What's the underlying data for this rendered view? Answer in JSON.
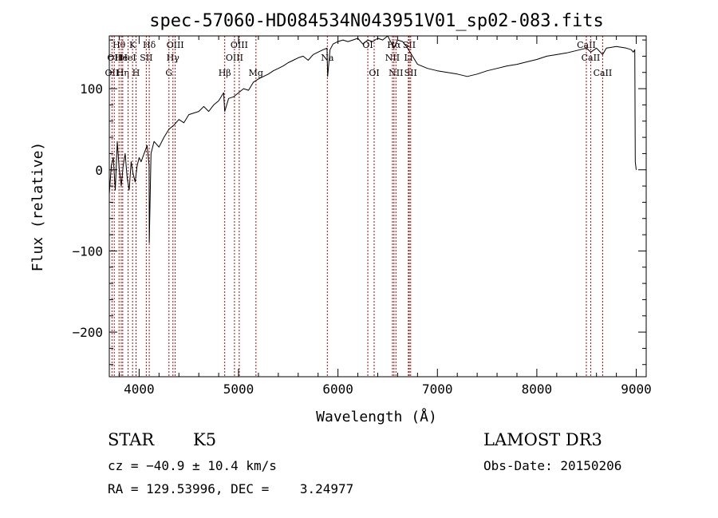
{
  "chart_data": {
    "type": "line",
    "title": "spec-57060-HD084534N043951V01_sp02-083.fits",
    "xlabel": "Wavelength (Å)",
    "ylabel": "Flux (relative)",
    "xlim": [
      3700,
      9100
    ],
    "ylim": [
      -255,
      165
    ],
    "xticks": [
      4000,
      5000,
      6000,
      7000,
      8000,
      9000
    ],
    "yticks": [
      -200,
      -100,
      0,
      100
    ],
    "xtick_labels": [
      "4000",
      "5000",
      "6000",
      "7000",
      "8000",
      "9000"
    ],
    "ytick_labels": [
      "−200",
      "−100",
      "0",
      "100"
    ],
    "grid": false,
    "series": [
      {
        "x": [
          3700,
          3720,
          3740,
          3760,
          3780,
          3800,
          3820,
          3840,
          3860,
          3880,
          3900,
          3920,
          3940,
          3960,
          3980,
          4000,
          4020,
          4050,
          4080,
          4100,
          4102,
          4120,
          4150,
          4200,
          4250,
          4300,
          4350,
          4400,
          4450,
          4500,
          4550,
          4600,
          4650,
          4700,
          4750,
          4800,
          4850,
          4861,
          4900,
          4950,
          5000,
          5050,
          5100,
          5150,
          5200,
          5250,
          5300,
          5350,
          5400,
          5450,
          5500,
          5550,
          5600,
          5650,
          5700,
          5750,
          5800,
          5850,
          5890,
          5896,
          5920,
          5950,
          6000,
          6050,
          6100,
          6150,
          6200,
          6250,
          6300,
          6350,
          6400,
          6450,
          6500,
          6563,
          6600,
          6650,
          6700,
          6750,
          6800,
          6900,
          7000,
          7100,
          7200,
          7300,
          7400,
          7500,
          7600,
          7700,
          7800,
          7900,
          8000,
          8100,
          8200,
          8300,
          8400,
          8500,
          8542,
          8600,
          8662,
          8700,
          8800,
          8900,
          8950,
          8970,
          8985,
          8990,
          9000
        ],
        "y": [
          -30,
          5,
          15,
          -25,
          35,
          0,
          -20,
          5,
          20,
          -10,
          -25,
          10,
          -5,
          -15,
          5,
          15,
          10,
          20,
          30,
          5,
          -90,
          20,
          35,
          28,
          40,
          50,
          55,
          62,
          58,
          68,
          70,
          72,
          78,
          72,
          80,
          85,
          95,
          72,
          88,
          90,
          95,
          100,
          98,
          108,
          112,
          115,
          118,
          122,
          125,
          128,
          132,
          135,
          138,
          140,
          135,
          142,
          145,
          148,
          150,
          115,
          148,
          155,
          158,
          160,
          158,
          160,
          162,
          155,
          160,
          158,
          162,
          160,
          165,
          150,
          160,
          158,
          150,
          140,
          130,
          125,
          122,
          120,
          118,
          115,
          118,
          122,
          125,
          128,
          130,
          133,
          136,
          140,
          142,
          144,
          147,
          150,
          145,
          150,
          142,
          150,
          152,
          150,
          148,
          145,
          148,
          10,
          0
        ]
      }
    ],
    "line_markers": [
      {
        "wl": 3727,
        "label": "OII",
        "row": 2
      },
      {
        "wl": 3750,
        "label": "OII",
        "row": 1
      },
      {
        "wl": 3798,
        "label": "Hθ",
        "row": 0
      },
      {
        "wl": 3820,
        "label": "He",
        "row": 1
      },
      {
        "wl": 3835,
        "label": "Hη",
        "row": 2
      },
      {
        "wl": 3889,
        "label": "HeI",
        "row": 1
      },
      {
        "wl": 3934,
        "label": "K",
        "row": 0
      },
      {
        "wl": 3969,
        "label": "H",
        "row": 2
      },
      {
        "wl": 4072,
        "label": "SII",
        "row": 1
      },
      {
        "wl": 4102,
        "label": "Hδ",
        "row": 0
      },
      {
        "wl": 4300,
        "label": "G",
        "row": 2
      },
      {
        "wl": 4340,
        "label": "Hγ",
        "row": 1
      },
      {
        "wl": 4363,
        "label": "OIII",
        "row": 0
      },
      {
        "wl": 4861,
        "label": "Hβ",
        "row": 2
      },
      {
        "wl": 4959,
        "label": "OIII",
        "row": 1
      },
      {
        "wl": 5007,
        "label": "OIII",
        "row": 0
      },
      {
        "wl": 5175,
        "label": "Mg",
        "row": 2
      },
      {
        "wl": 5893,
        "label": "Na",
        "row": 1
      },
      {
        "wl": 6300,
        "label": "OI",
        "row": 0
      },
      {
        "wl": 6364,
        "label": "OI",
        "row": 2
      },
      {
        "wl": 6548,
        "label": "NII",
        "row": 1
      },
      {
        "wl": 6563,
        "label": "Hα",
        "row": 0
      },
      {
        "wl": 6583,
        "label": "NII",
        "row": 2
      },
      {
        "wl": 6708,
        "label": "Li",
        "row": 1
      },
      {
        "wl": 6717,
        "label": "SII",
        "row": 0
      },
      {
        "wl": 6731,
        "label": "SII",
        "row": 2
      },
      {
        "wl": 8498,
        "label": "CaII",
        "row": 0
      },
      {
        "wl": 8542,
        "label": "CaII",
        "row": 1
      },
      {
        "wl": 8662,
        "label": "CaII",
        "row": 2
      }
    ]
  },
  "info": {
    "object_class": "STAR",
    "subclass": "K5",
    "survey": "LAMOST DR3",
    "cz": "cz = −40.9 ± 10.4 km/s",
    "obs_date": "Obs-Date: 20150206",
    "coords": "RA = 129.53996, DEC =    3.24977"
  }
}
